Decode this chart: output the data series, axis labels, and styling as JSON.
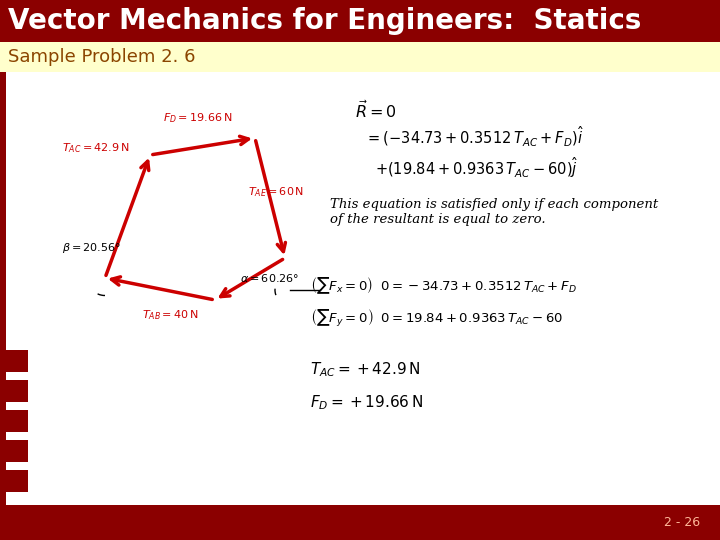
{
  "title": "Vector Mechanics for Engineers:  Statics",
  "subtitle": "Sample Problem 2. 6",
  "title_bg": "#8B0000",
  "subtitle_bg": "#FFFFCC",
  "title_color": "#FFFFFF",
  "subtitle_color": "#8B4500",
  "footer_bg": "#8B0000",
  "footer_text": "2 - 26",
  "footer_color": "#FFB899",
  "main_bg": "#FFFFFF",
  "left_border_color": "#8B0000",
  "nav_bg": "#8B0000",
  "nav_icon_color": "#FFFFFF",
  "diagram_color": "#CC0000",
  "text_color": "#000000",
  "equation_text": "This equation is satisfied only if each component\nof the resultant is equal to zero."
}
